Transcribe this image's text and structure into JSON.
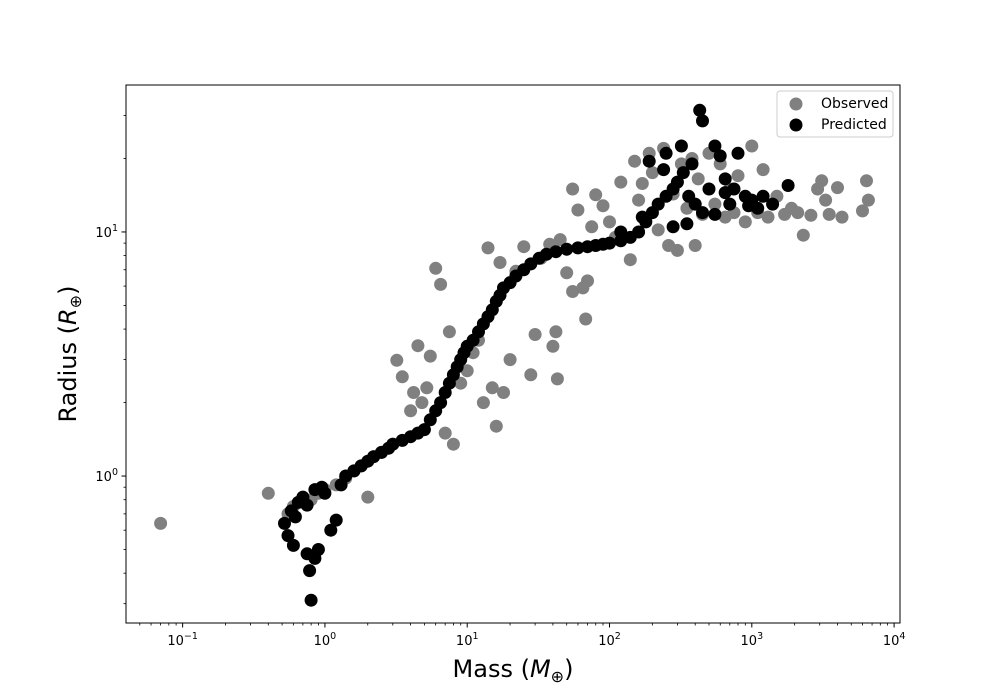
{
  "chart_data": {
    "type": "scatter",
    "title": "",
    "xlabel": "Mass (M⊕)",
    "ylabel": "Radius (R⊕)",
    "xscale": "log",
    "yscale": "log",
    "xlim": [
      0.04,
      11000
    ],
    "ylim": [
      0.25,
      40
    ],
    "x_ticks": [
      {
        "value": 0.1,
        "base": "10",
        "exp": "−1"
      },
      {
        "value": 1,
        "base": "10",
        "exp": "0"
      },
      {
        "value": 10,
        "base": "10",
        "exp": "1"
      },
      {
        "value": 100,
        "base": "10",
        "exp": "2"
      },
      {
        "value": 1000,
        "base": "10",
        "exp": "3"
      },
      {
        "value": 10000,
        "base": "10",
        "exp": "4"
      }
    ],
    "y_ticks": [
      {
        "value": 1,
        "base": "10",
        "exp": "0"
      },
      {
        "value": 10,
        "base": "10",
        "exp": "1"
      }
    ],
    "grid": false,
    "legend_position": "top-right",
    "series": [
      {
        "name": "Observed",
        "color": "#808080",
        "points": [
          [
            0.07,
            0.64
          ],
          [
            0.4,
            0.85
          ],
          [
            0.55,
            0.7
          ],
          [
            0.6,
            0.75
          ],
          [
            0.7,
            0.78
          ],
          [
            0.8,
            0.8
          ],
          [
            0.9,
            0.85
          ],
          [
            1.0,
            0.88
          ],
          [
            1.2,
            0.92
          ],
          [
            1.4,
            0.98
          ],
          [
            1.6,
            1.05
          ],
          [
            1.8,
            1.1
          ],
          [
            2.0,
            0.82
          ],
          [
            2.2,
            1.2
          ],
          [
            2.5,
            1.25
          ],
          [
            2.8,
            1.3
          ],
          [
            3.0,
            1.35
          ],
          [
            3.2,
            2.98
          ],
          [
            3.5,
            2.55
          ],
          [
            4.0,
            1.85
          ],
          [
            4.2,
            2.2
          ],
          [
            4.5,
            3.42
          ],
          [
            4.8,
            2.0
          ],
          [
            5.2,
            2.3
          ],
          [
            5.5,
            3.1
          ],
          [
            6.0,
            7.1
          ],
          [
            6.5,
            6.1
          ],
          [
            7.0,
            1.5
          ],
          [
            7.5,
            3.9
          ],
          [
            8.0,
            1.35
          ],
          [
            9.0,
            2.4
          ],
          [
            10.0,
            2.7
          ],
          [
            11.0,
            3.2
          ],
          [
            12.0,
            3.6
          ],
          [
            13.0,
            2.0
          ],
          [
            14.0,
            8.6
          ],
          [
            15.0,
            2.3
          ],
          [
            16.0,
            1.6
          ],
          [
            17.0,
            7.5
          ],
          [
            18.0,
            2.2
          ],
          [
            20.0,
            3.0
          ],
          [
            22.0,
            6.9
          ],
          [
            25.0,
            8.7
          ],
          [
            28.0,
            2.6
          ],
          [
            30.0,
            3.8
          ],
          [
            33.0,
            7.8
          ],
          [
            38.0,
            8.9
          ],
          [
            40.0,
            3.4
          ],
          [
            42.0,
            3.9
          ],
          [
            43.0,
            2.5
          ],
          [
            45.0,
            9.3
          ],
          [
            50.0,
            6.8
          ],
          [
            55.0,
            5.7
          ],
          [
            55.0,
            15.0
          ],
          [
            60.0,
            12.3
          ],
          [
            65.0,
            5.9
          ],
          [
            68.0,
            4.4
          ],
          [
            70.0,
            6.3
          ],
          [
            75.0,
            10.5
          ],
          [
            80.0,
            14.2
          ],
          [
            90.0,
            12.8
          ],
          [
            100.0,
            11.0
          ],
          [
            110.0,
            9.5
          ],
          [
            120.0,
            16.0
          ],
          [
            140.0,
            7.7
          ],
          [
            150.0,
            19.5
          ],
          [
            160.0,
            13.5
          ],
          [
            170.0,
            15.8
          ],
          [
            180.0,
            11.2
          ],
          [
            190.0,
            21.0
          ],
          [
            200.0,
            17.5
          ],
          [
            220.0,
            10.2
          ],
          [
            240.0,
            22.0
          ],
          [
            260.0,
            8.8
          ],
          [
            280.0,
            14.3
          ],
          [
            300.0,
            8.4
          ],
          [
            320.0,
            19.0
          ],
          [
            350.0,
            12.5
          ],
          [
            380.0,
            20.0
          ],
          [
            400.0,
            8.8
          ],
          [
            420.0,
            16.5
          ],
          [
            450.0,
            11.8
          ],
          [
            500.0,
            21.0
          ],
          [
            550.0,
            13.0
          ],
          [
            600.0,
            19.0
          ],
          [
            650.0,
            11.5
          ],
          [
            700.0,
            15.0
          ],
          [
            750.0,
            12.0
          ],
          [
            800.0,
            17.0
          ],
          [
            900.0,
            11.0
          ],
          [
            1000.0,
            22.5
          ],
          [
            1100.0,
            12.0
          ],
          [
            1200.0,
            18.0
          ],
          [
            1300.0,
            11.5
          ],
          [
            1500.0,
            14.0
          ],
          [
            1700.0,
            11.8
          ],
          [
            1900.0,
            12.5
          ],
          [
            2100.0,
            12.0
          ],
          [
            2300.0,
            9.7
          ],
          [
            2600.0,
            11.7
          ],
          [
            2900.0,
            15.0
          ],
          [
            3100.0,
            16.2
          ],
          [
            3300.0,
            13.5
          ],
          [
            3500.0,
            11.8
          ],
          [
            4000.0,
            15.2
          ],
          [
            4300.0,
            11.5
          ],
          [
            6000.0,
            12.2
          ],
          [
            6400.0,
            16.2
          ],
          [
            6600.0,
            13.5
          ]
        ]
      },
      {
        "name": "Predicted",
        "color": "#000000",
        "points": [
          [
            0.8,
            0.31
          ],
          [
            0.78,
            0.41
          ],
          [
            0.85,
            0.46
          ],
          [
            0.9,
            0.5
          ],
          [
            0.75,
            0.48
          ],
          [
            0.6,
            0.52
          ],
          [
            0.55,
            0.57
          ],
          [
            0.52,
            0.64
          ],
          [
            0.62,
            0.68
          ],
          [
            0.58,
            0.72
          ],
          [
            0.65,
            0.78
          ],
          [
            0.7,
            0.82
          ],
          [
            0.75,
            0.76
          ],
          [
            0.85,
            0.88
          ],
          [
            0.95,
            0.9
          ],
          [
            1.0,
            0.85
          ],
          [
            1.1,
            0.6
          ],
          [
            1.2,
            0.66
          ],
          [
            1.3,
            0.92
          ],
          [
            1.4,
            1.0
          ],
          [
            1.6,
            1.05
          ],
          [
            1.8,
            1.1
          ],
          [
            2.0,
            1.15
          ],
          [
            2.2,
            1.2
          ],
          [
            2.5,
            1.25
          ],
          [
            2.8,
            1.3
          ],
          [
            3.0,
            1.35
          ],
          [
            3.5,
            1.4
          ],
          [
            4.0,
            1.45
          ],
          [
            4.5,
            1.5
          ],
          [
            5.0,
            1.55
          ],
          [
            5.5,
            1.7
          ],
          [
            6.0,
            1.85
          ],
          [
            6.5,
            2.0
          ],
          [
            7.0,
            2.2
          ],
          [
            7.5,
            2.4
          ],
          [
            8.0,
            2.6
          ],
          [
            8.5,
            2.8
          ],
          [
            9.0,
            3.0
          ],
          [
            9.5,
            3.2
          ],
          [
            10.0,
            3.4
          ],
          [
            11.0,
            3.6
          ],
          [
            12.0,
            3.9
          ],
          [
            13.0,
            4.2
          ],
          [
            14.0,
            4.5
          ],
          [
            15.0,
            4.8
          ],
          [
            16.0,
            5.2
          ],
          [
            17.0,
            5.5
          ],
          [
            18.0,
            5.9
          ],
          [
            20.0,
            6.2
          ],
          [
            22.0,
            6.6
          ],
          [
            25.0,
            7.0
          ],
          [
            28.0,
            7.4
          ],
          [
            32.0,
            7.8
          ],
          [
            36.0,
            8.1
          ],
          [
            42.0,
            8.3
          ],
          [
            50.0,
            8.5
          ],
          [
            60.0,
            8.6
          ],
          [
            70.0,
            8.7
          ],
          [
            80.0,
            8.8
          ],
          [
            90.0,
            8.9
          ],
          [
            100.0,
            9.0
          ],
          [
            120.0,
            9.2
          ],
          [
            140.0,
            9.5
          ],
          [
            160.0,
            10.0
          ],
          [
            180.0,
            11.0
          ],
          [
            200.0,
            12.0
          ],
          [
            220.0,
            13.0
          ],
          [
            250.0,
            14.0
          ],
          [
            280.0,
            15.0
          ],
          [
            300.0,
            16.0
          ],
          [
            330.0,
            17.5
          ],
          [
            360.0,
            14.0
          ],
          [
            400.0,
            13.0
          ],
          [
            430.0,
            31.5
          ],
          [
            450.0,
            28.5
          ],
          [
            500.0,
            15.0
          ],
          [
            550.0,
            22.5
          ],
          [
            600.0,
            20.5
          ],
          [
            650.0,
            14.5
          ],
          [
            700.0,
            13.0
          ],
          [
            750.0,
            15.0
          ],
          [
            800.0,
            21.0
          ],
          [
            900.0,
            14.0
          ],
          [
            1000.0,
            13.5
          ],
          [
            1100.0,
            12.5
          ],
          [
            1200.0,
            14.0
          ],
          [
            1400.0,
            13.0
          ],
          [
            1800.0,
            15.5
          ],
          [
            190.0,
            19.5
          ],
          [
            250.0,
            21.0
          ],
          [
            320.0,
            22.5
          ],
          [
            280.0,
            10.5
          ],
          [
            350.0,
            10.8
          ],
          [
            120.0,
            10.0
          ],
          [
            170.0,
            11.5
          ],
          [
            240.0,
            18.0
          ],
          [
            380.0,
            19.0
          ],
          [
            450.0,
            12.0
          ],
          [
            550.0,
            11.8
          ],
          [
            650.0,
            16.5
          ],
          [
            950.0,
            12.8
          ]
        ]
      }
    ]
  }
}
